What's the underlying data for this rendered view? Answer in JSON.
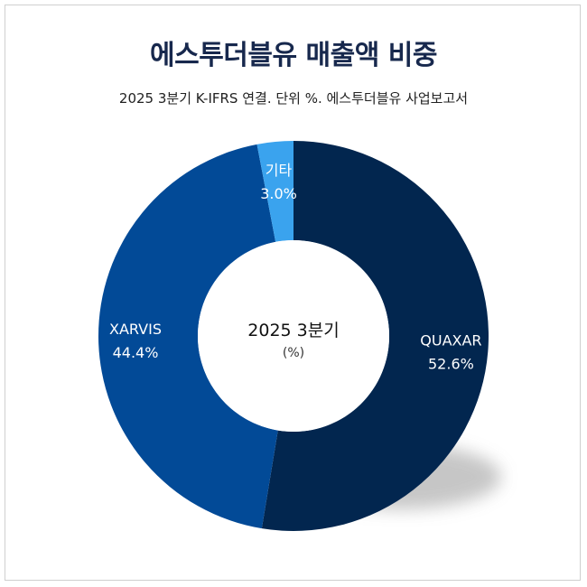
{
  "chart_data": {
    "type": "pie",
    "title": "에스투더블유 매출액 비중",
    "subtitle": "2025 3분기 K-IFRS 연결. 단위 %. 에스투더블유 사업보고서",
    "center": {
      "label": "2025 3분기",
      "unit": "(%)"
    },
    "categories": [
      "QUAXAR",
      "XARVIS",
      "기타"
    ],
    "values": [
      52.6,
      44.4,
      3.0
    ],
    "value_labels": [
      "52.6%",
      "44.4%",
      "3.0%"
    ],
    "colors": [
      "#02264f",
      "#024a97",
      "#3aa3ee"
    ],
    "donut": true,
    "legend": "none"
  }
}
